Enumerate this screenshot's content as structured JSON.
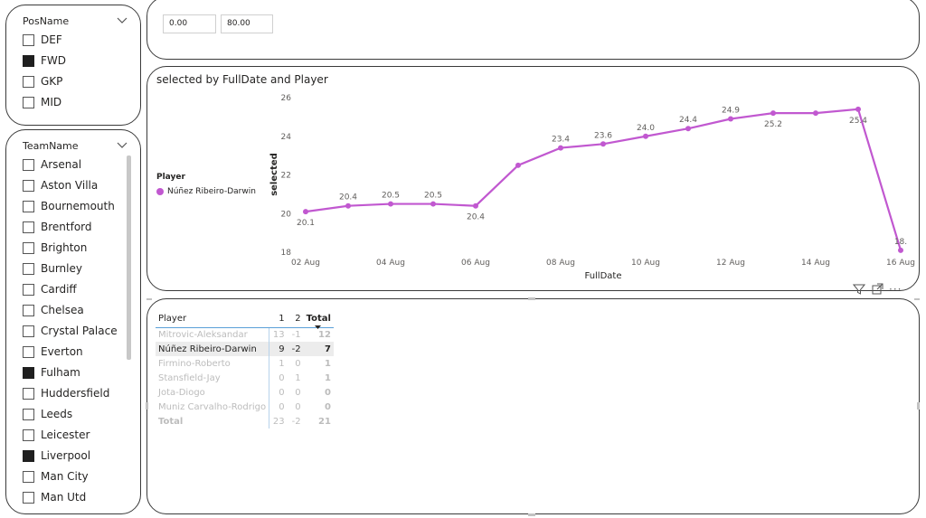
{
  "pos_slicer": {
    "title": "PosName",
    "items": [
      {
        "label": "DEF",
        "checked": false
      },
      {
        "label": "FWD",
        "checked": true
      },
      {
        "label": "GKP",
        "checked": false
      },
      {
        "label": "MID",
        "checked": false
      }
    ]
  },
  "team_slicer": {
    "title": "TeamName",
    "items": [
      {
        "label": "Arsenal",
        "checked": false
      },
      {
        "label": "Aston Villa",
        "checked": false
      },
      {
        "label": "Bournemouth",
        "checked": false
      },
      {
        "label": "Brentford",
        "checked": false
      },
      {
        "label": "Brighton",
        "checked": false
      },
      {
        "label": "Burnley",
        "checked": false
      },
      {
        "label": "Cardiff",
        "checked": false
      },
      {
        "label": "Chelsea",
        "checked": false
      },
      {
        "label": "Crystal Palace",
        "checked": false
      },
      {
        "label": "Everton",
        "checked": false
      },
      {
        "label": "Fulham",
        "checked": true
      },
      {
        "label": "Huddersfield",
        "checked": false
      },
      {
        "label": "Leeds",
        "checked": false
      },
      {
        "label": "Leicester",
        "checked": false
      },
      {
        "label": "Liverpool",
        "checked": true
      },
      {
        "label": "Man City",
        "checked": false
      },
      {
        "label": "Man Utd",
        "checked": false
      }
    ]
  },
  "range_slicer": {
    "min": "0.00",
    "max": "80.00"
  },
  "chart_data": {
    "type": "line",
    "title": "selected by FullDate and Player",
    "xlabel": "FullDate",
    "ylabel": "selected",
    "legend_title": "Player",
    "series": [
      {
        "name": "Núñez Ribeiro-Darwin",
        "color": "#c158d0",
        "x": [
          "02 Aug",
          "03 Aug",
          "04 Aug",
          "05 Aug",
          "06 Aug",
          "07 Aug",
          "08 Aug",
          "09 Aug",
          "10 Aug",
          "11 Aug",
          "12 Aug",
          "13 Aug",
          "14 Aug",
          "15 Aug",
          "16 Aug"
        ],
        "values": [
          20.1,
          20.4,
          20.5,
          20.5,
          20.4,
          22.5,
          23.4,
          23.6,
          24.0,
          24.4,
          24.9,
          25.2,
          25.2,
          25.4,
          18.1
        ],
        "labels": [
          "20.1",
          "20.4",
          "20.5",
          "20.5",
          "20.4",
          "",
          "23.4",
          "23.6",
          "24.0",
          "24.4",
          "24.9",
          "25.2",
          "",
          "25.4",
          "18."
        ]
      }
    ],
    "x_ticks": [
      "02 Aug",
      "04 Aug",
      "06 Aug",
      "08 Aug",
      "10 Aug",
      "12 Aug",
      "14 Aug",
      "16 Aug"
    ],
    "y_ticks": [
      18,
      20,
      22,
      24,
      26
    ],
    "ylim": [
      18,
      26
    ],
    "grid": false,
    "legend_position": "left"
  },
  "matrix": {
    "headers": [
      "Player",
      "1",
      "2",
      "Total"
    ],
    "rows": [
      {
        "player": "Mitrovic-Aleksandar",
        "c1": "13",
        "c2": "-1",
        "total": "12",
        "state": "dim"
      },
      {
        "player": "Núñez Ribeiro-Darwin",
        "c1": "9",
        "c2": "-2",
        "total": "7",
        "state": "sel"
      },
      {
        "player": "Firmino-Roberto",
        "c1": "1",
        "c2": "0",
        "total": "1",
        "state": "dim"
      },
      {
        "player": "Stansfield-Jay",
        "c1": "0",
        "c2": "1",
        "total": "1",
        "state": "dim"
      },
      {
        "player": "Jota-Diogo",
        "c1": "0",
        "c2": "0",
        "total": "0",
        "state": "dim"
      },
      {
        "player": "Muniz Carvalho-Rodrigo",
        "c1": "0",
        "c2": "0",
        "total": "0",
        "state": "dim"
      }
    ],
    "total_row": {
      "label": "Total",
      "c1": "23",
      "c2": "-2",
      "total": "21"
    }
  },
  "visual_header": {
    "more_label": "···"
  }
}
